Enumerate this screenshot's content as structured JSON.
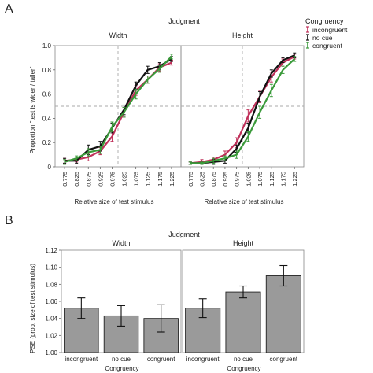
{
  "panel_a": {
    "letter": "A",
    "facet_title": "Judgment",
    "legend_title": "Congruency",
    "ylabel": "Proportion \"test is wider / taller\"",
    "xlabel": "Relative size of test stimulus"
  },
  "panel_b": {
    "letter": "B",
    "facet_title": "Judgment",
    "ylabel": "PSE (prop. size of test stimulus)",
    "xlabel": "Congruency"
  },
  "colors": {
    "incongruent": "#c0305a",
    "no_cue": "#111111",
    "congruent": "#3a9a3a",
    "bar_fill": "#9a9a9a",
    "reference": "#aaaaaa"
  },
  "chart_data": [
    {
      "type": "line",
      "panel": "A",
      "facet": "Width",
      "x": [
        0.775,
        0.825,
        0.875,
        0.925,
        0.975,
        1.025,
        1.075,
        1.125,
        1.175,
        1.225
      ],
      "xticks": [
        "0.775",
        "0.825",
        "0.875",
        "0.925",
        "0.975",
        "1.025",
        "1.075",
        "1.125",
        "1.175",
        "1.225"
      ],
      "yticks": [
        "0",
        "0.2",
        "0.4",
        "0.6",
        "0.8",
        "1.0"
      ],
      "ylim": [
        0,
        1.0
      ],
      "reference_x": 1.0,
      "reference_y": 0.5,
      "series": [
        {
          "name": "incongruent",
          "values": [
            0.05,
            0.06,
            0.08,
            0.13,
            0.25,
            0.45,
            0.63,
            0.72,
            0.82,
            0.86
          ],
          "err": [
            0.02,
            0.02,
            0.03,
            0.03,
            0.04,
            0.04,
            0.04,
            0.03,
            0.03,
            0.02
          ]
        },
        {
          "name": "no cue",
          "values": [
            0.05,
            0.05,
            0.14,
            0.17,
            0.32,
            0.47,
            0.67,
            0.8,
            0.83,
            0.89
          ],
          "err": [
            0.02,
            0.02,
            0.04,
            0.04,
            0.04,
            0.04,
            0.03,
            0.03,
            0.03,
            0.02
          ]
        },
        {
          "name": "congruent",
          "values": [
            0.04,
            0.07,
            0.12,
            0.14,
            0.33,
            0.45,
            0.6,
            0.72,
            0.81,
            0.91
          ],
          "err": [
            0.02,
            0.02,
            0.03,
            0.03,
            0.04,
            0.04,
            0.04,
            0.03,
            0.03,
            0.02
          ]
        }
      ]
    },
    {
      "type": "line",
      "panel": "A",
      "facet": "Height",
      "x": [
        0.775,
        0.825,
        0.875,
        0.925,
        0.975,
        1.025,
        1.075,
        1.125,
        1.175,
        1.225
      ],
      "xticks": [
        "0.775",
        "0.825",
        "0.875",
        "0.925",
        "0.975",
        "1.025",
        "1.075",
        "1.125",
        "1.175",
        "1.225"
      ],
      "ylim": [
        0,
        1.0
      ],
      "reference_x": 1.0,
      "reference_y": 0.5,
      "series": [
        {
          "name": "incongruent",
          "values": [
            0.03,
            0.04,
            0.06,
            0.1,
            0.2,
            0.42,
            0.58,
            0.74,
            0.86,
            0.91
          ],
          "err": [
            0.01,
            0.02,
            0.02,
            0.03,
            0.04,
            0.05,
            0.05,
            0.04,
            0.03,
            0.02
          ]
        },
        {
          "name": "no cue",
          "values": [
            0.03,
            0.03,
            0.04,
            0.05,
            0.15,
            0.32,
            0.58,
            0.77,
            0.88,
            0.92
          ],
          "err": [
            0.01,
            0.01,
            0.02,
            0.02,
            0.03,
            0.04,
            0.04,
            0.03,
            0.02,
            0.02
          ]
        },
        {
          "name": "congruent",
          "values": [
            0.03,
            0.03,
            0.05,
            0.07,
            0.1,
            0.25,
            0.45,
            0.63,
            0.8,
            0.89
          ],
          "err": [
            0.01,
            0.01,
            0.02,
            0.02,
            0.03,
            0.04,
            0.05,
            0.05,
            0.03,
            0.02
          ]
        }
      ]
    },
    {
      "type": "bar",
      "panel": "B",
      "facet": "Width",
      "categories": [
        "incongruent",
        "no cue",
        "congruent"
      ],
      "values": [
        1.052,
        1.043,
        1.04
      ],
      "err": [
        0.012,
        0.012,
        0.016
      ],
      "yticks": [
        "1.00",
        "1.02",
        "1.04",
        "1.06",
        "1.08",
        "1.10",
        "1.12"
      ],
      "ylim": [
        1.0,
        1.12
      ]
    },
    {
      "type": "bar",
      "panel": "B",
      "facet": "Height",
      "categories": [
        "incongruent",
        "no cue",
        "congruent"
      ],
      "values": [
        1.052,
        1.071,
        1.09
      ],
      "err": [
        0.011,
        0.007,
        0.012
      ],
      "ylim": [
        1.0,
        1.12
      ]
    }
  ]
}
